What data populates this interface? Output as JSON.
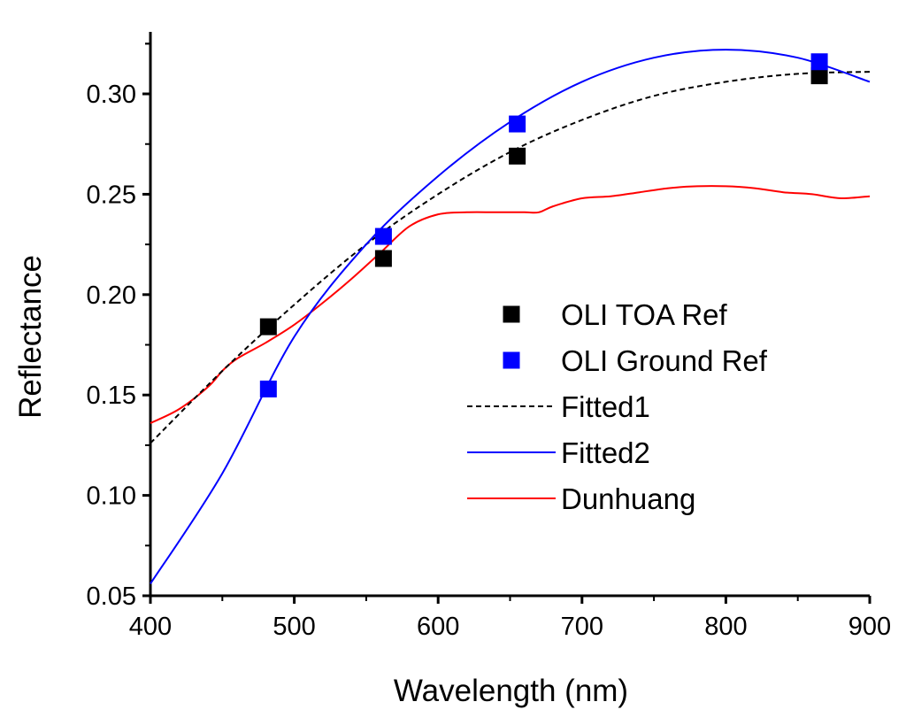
{
  "chart_data": {
    "type": "line",
    "title": "",
    "xlabel": "Wavelength (nm)",
    "ylabel": "Reflectance",
    "xlim": [
      400,
      900
    ],
    "ylim": [
      0.05,
      0.33
    ],
    "x_ticks": [
      400,
      500,
      600,
      700,
      800,
      900
    ],
    "x_tick_labels": [
      "400",
      "500",
      "600",
      "700",
      "800",
      "900"
    ],
    "y_ticks": [
      0.05,
      0.1,
      0.15,
      0.2,
      0.25,
      0.3
    ],
    "y_tick_labels": [
      "0.05",
      "0.10",
      "0.15",
      "0.20",
      "0.25",
      "0.30"
    ],
    "grid": false,
    "legend_position": "center-right",
    "series": [
      {
        "name": "OLI TOA Ref",
        "kind": "scatter",
        "marker": "square",
        "color": "#000000",
        "x": [
          482,
          562,
          655,
          865
        ],
        "y": [
          0.184,
          0.218,
          0.269,
          0.309
        ]
      },
      {
        "name": "OLI Ground Ref",
        "kind": "scatter",
        "marker": "square",
        "color": "#0000ff",
        "x": [
          482,
          562,
          655,
          865
        ],
        "y": [
          0.153,
          0.229,
          0.285,
          0.316
        ]
      },
      {
        "name": "Fitted1",
        "kind": "line",
        "style": "dashed",
        "color": "#000000",
        "x": [
          400,
          450,
          500,
          550,
          600,
          650,
          700,
          750,
          800,
          850,
          900
        ],
        "y": [
          0.126,
          0.162,
          0.195,
          0.225,
          0.25,
          0.271,
          0.287,
          0.299,
          0.306,
          0.31,
          0.311
        ]
      },
      {
        "name": "Fitted2",
        "kind": "line",
        "style": "solid",
        "color": "#0000ff",
        "x": [
          400,
          450,
          500,
          550,
          600,
          650,
          700,
          750,
          800,
          850,
          900
        ],
        "y": [
          0.056,
          0.111,
          0.179,
          0.225,
          0.259,
          0.286,
          0.306,
          0.318,
          0.322,
          0.318,
          0.306
        ]
      },
      {
        "name": "Dunhuang",
        "kind": "line",
        "style": "solid",
        "color": "#ff0000",
        "x": [
          400,
          420,
          440,
          450,
          460,
          480,
          500,
          520,
          540,
          560,
          580,
          600,
          620,
          640,
          660,
          670,
          680,
          700,
          720,
          740,
          760,
          780,
          800,
          820,
          840,
          860,
          880,
          900
        ],
        "y": [
          0.136,
          0.143,
          0.154,
          0.162,
          0.168,
          0.176,
          0.185,
          0.196,
          0.208,
          0.221,
          0.234,
          0.24,
          0.241,
          0.241,
          0.241,
          0.241,
          0.244,
          0.248,
          0.249,
          0.251,
          0.253,
          0.254,
          0.254,
          0.253,
          0.251,
          0.25,
          0.248,
          0.249
        ]
      }
    ]
  }
}
